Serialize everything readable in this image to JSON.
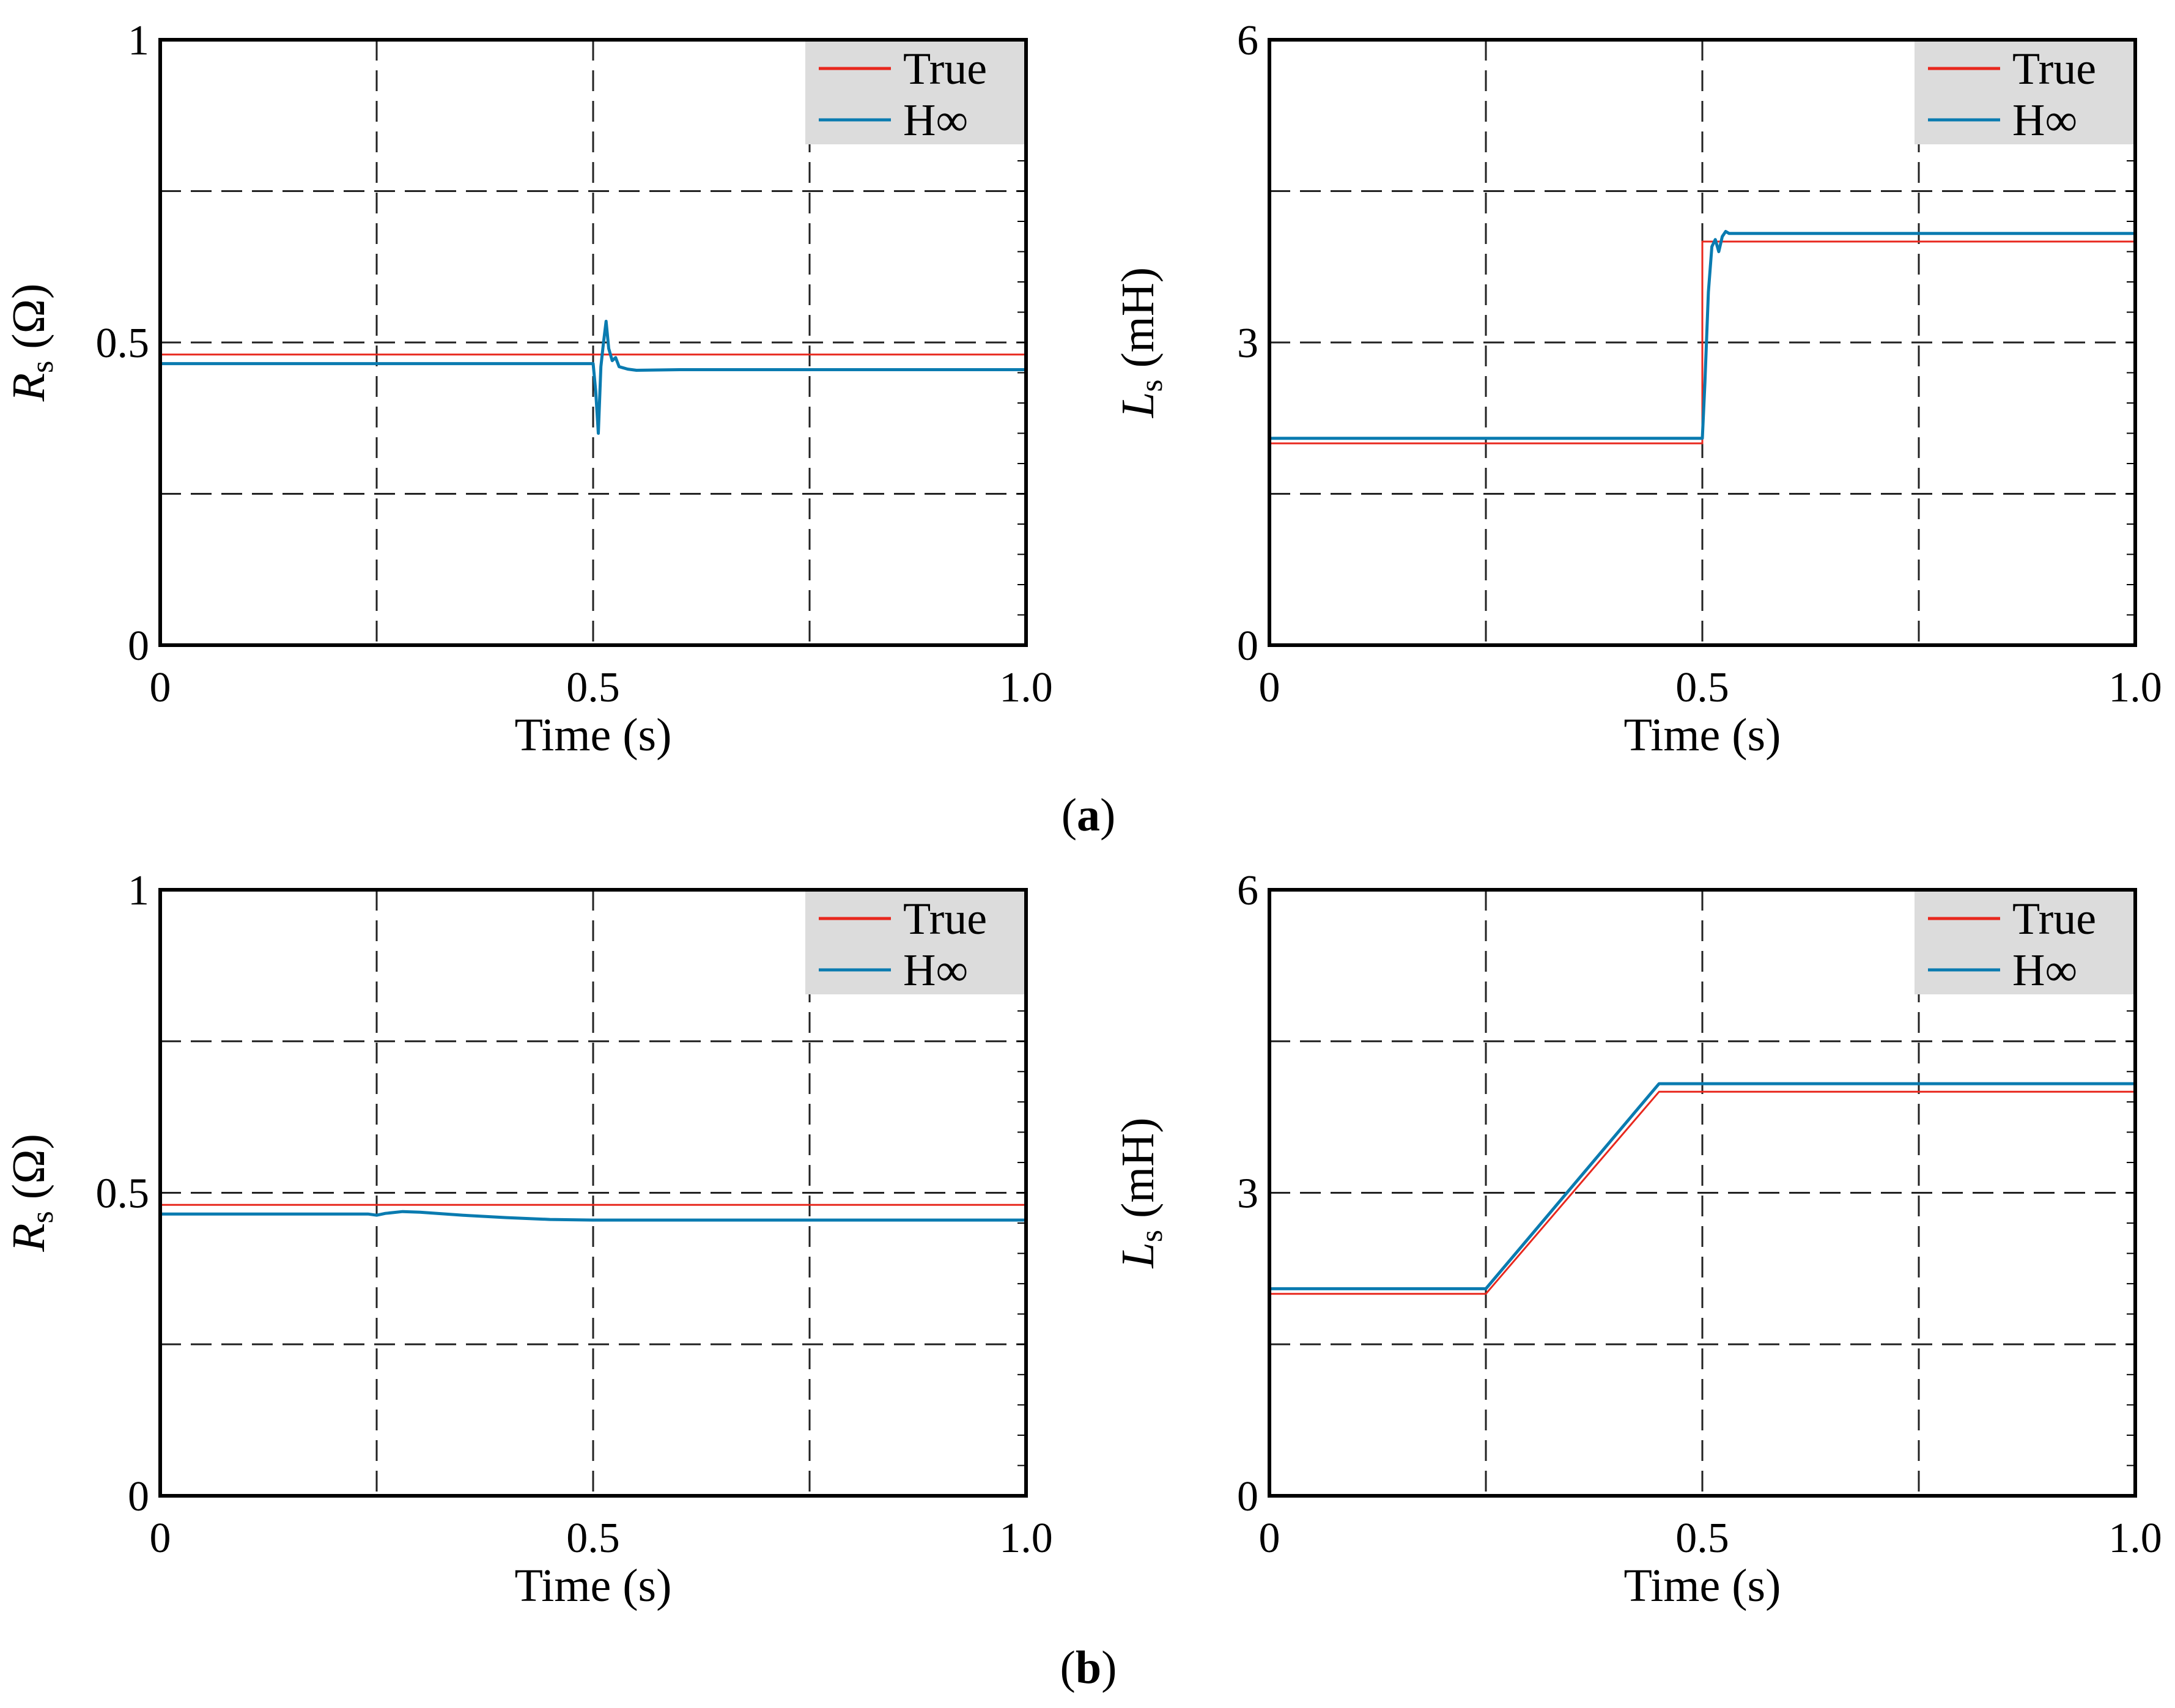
{
  "figure": {
    "captions": [
      {
        "open": "(",
        "label": "a",
        "close": ")"
      },
      {
        "open": "(",
        "label": "b",
        "close": ")"
      }
    ]
  },
  "colors": {
    "true_line": "#e8281e",
    "estimate_line": "#0a7bb0",
    "grid": "#222222",
    "legend_bg": "#dcdcdc"
  },
  "chart_data": [
    {
      "id": "a-rs",
      "type": "line",
      "panel": "a",
      "xlabel": "Time (s)",
      "ylabel": {
        "symbol": "R",
        "subscript": "s",
        "unit": " (Ω)"
      },
      "xlim": [
        0,
        1.0
      ],
      "ylim": [
        0,
        1
      ],
      "xticks": [
        {
          "v": 0,
          "label": "0"
        },
        {
          "v": 0.5,
          "label": "0.5"
        },
        {
          "v": 1.0,
          "label": "1.0"
        }
      ],
      "yticks": [
        {
          "v": 0,
          "label": "0"
        },
        {
          "v": 0.5,
          "label": "0.5"
        },
        {
          "v": 1,
          "label": "1"
        }
      ],
      "xgrid": [
        0.25,
        0.5,
        0.75
      ],
      "ygrid": [
        0.25,
        0.5,
        0.75
      ],
      "legend": [
        "True",
        "H∞"
      ],
      "series": [
        {
          "name": "True",
          "x": [
            0,
            0.5,
            0.5,
            1.0
          ],
          "y": [
            0.48,
            0.48,
            0.48,
            0.48
          ]
        },
        {
          "name": "H∞",
          "x": [
            0,
            0.5,
            0.503,
            0.506,
            0.509,
            0.512,
            0.515,
            0.518,
            0.522,
            0.526,
            0.53,
            0.54,
            0.55,
            0.6,
            0.7,
            0.8,
            0.9,
            1.0
          ],
          "y": [
            0.465,
            0.465,
            0.42,
            0.35,
            0.46,
            0.5,
            0.535,
            0.49,
            0.47,
            0.475,
            0.46,
            0.456,
            0.454,
            0.455,
            0.455,
            0.455,
            0.455,
            0.455
          ]
        }
      ]
    },
    {
      "id": "a-ls",
      "type": "line",
      "panel": "a",
      "xlabel": "Time (s)",
      "ylabel": {
        "symbol": "L",
        "subscript": "s",
        "unit": " (mH)"
      },
      "xlim": [
        0,
        1.0
      ],
      "ylim": [
        0,
        6
      ],
      "xticks": [
        {
          "v": 0,
          "label": "0"
        },
        {
          "v": 0.5,
          "label": "0.5"
        },
        {
          "v": 1.0,
          "label": "1.0"
        }
      ],
      "yticks": [
        {
          "v": 0,
          "label": "0"
        },
        {
          "v": 3,
          "label": "3"
        },
        {
          "v": 6,
          "label": "6"
        }
      ],
      "xgrid": [
        0.25,
        0.5,
        0.75
      ],
      "ygrid": [
        1.5,
        3,
        4.5
      ],
      "legend": [
        "True",
        "H∞"
      ],
      "series": [
        {
          "name": "True",
          "x": [
            0,
            0.5,
            0.5,
            1.0
          ],
          "y": [
            2.0,
            2.0,
            4.0,
            4.0
          ]
        },
        {
          "name": "H∞",
          "x": [
            0,
            0.5,
            0.503,
            0.507,
            0.511,
            0.515,
            0.519,
            0.523,
            0.527,
            0.531,
            0.54,
            0.6,
            0.7,
            0.8,
            0.9,
            1.0
          ],
          "y": [
            2.05,
            2.05,
            2.6,
            3.5,
            3.95,
            4.02,
            3.9,
            4.05,
            4.1,
            4.08,
            4.08,
            4.08,
            4.08,
            4.08,
            4.08,
            4.08
          ]
        }
      ]
    },
    {
      "id": "b-rs",
      "type": "line",
      "panel": "b",
      "xlabel": "Time (s)",
      "ylabel": {
        "symbol": "R",
        "subscript": "s",
        "unit": " (Ω)"
      },
      "xlim": [
        0,
        1.0
      ],
      "ylim": [
        0,
        1
      ],
      "xticks": [
        {
          "v": 0,
          "label": "0"
        },
        {
          "v": 0.5,
          "label": "0.5"
        },
        {
          "v": 1.0,
          "label": "1.0"
        }
      ],
      "yticks": [
        {
          "v": 0,
          "label": "0"
        },
        {
          "v": 0.5,
          "label": "0.5"
        },
        {
          "v": 1,
          "label": "1"
        }
      ],
      "xgrid": [
        0.25,
        0.5,
        0.75
      ],
      "ygrid": [
        0.25,
        0.5,
        0.75
      ],
      "legend": [
        "True",
        "H∞"
      ],
      "series": [
        {
          "name": "True",
          "x": [
            0,
            1.0
          ],
          "y": [
            0.48,
            0.48
          ]
        },
        {
          "name": "H∞",
          "x": [
            0,
            0.24,
            0.25,
            0.26,
            0.28,
            0.3,
            0.35,
            0.4,
            0.45,
            0.5,
            0.6,
            0.7,
            0.8,
            0.9,
            1.0
          ],
          "y": [
            0.465,
            0.465,
            0.463,
            0.466,
            0.469,
            0.468,
            0.463,
            0.459,
            0.456,
            0.455,
            0.455,
            0.455,
            0.455,
            0.455,
            0.455
          ]
        }
      ]
    },
    {
      "id": "b-ls",
      "type": "line",
      "panel": "b",
      "xlabel": "Time (s)",
      "ylabel": {
        "symbol": "L",
        "subscript": "s",
        "unit": " (mH)"
      },
      "xlim": [
        0,
        1.0
      ],
      "ylim": [
        0,
        6
      ],
      "xticks": [
        {
          "v": 0,
          "label": "0"
        },
        {
          "v": 0.5,
          "label": "0.5"
        },
        {
          "v": 1.0,
          "label": "1.0"
        }
      ],
      "yticks": [
        {
          "v": 0,
          "label": "0"
        },
        {
          "v": 3,
          "label": "3"
        },
        {
          "v": 6,
          "label": "6"
        }
      ],
      "xgrid": [
        0.25,
        0.5,
        0.75
      ],
      "ygrid": [
        1.5,
        3,
        4.5
      ],
      "legend": [
        "True",
        "H∞"
      ],
      "series": [
        {
          "name": "True",
          "x": [
            0,
            0.25,
            0.45,
            1.0
          ],
          "y": [
            2.0,
            2.0,
            4.0,
            4.0
          ]
        },
        {
          "name": "H∞",
          "x": [
            0,
            0.25,
            0.45,
            0.46,
            1.0
          ],
          "y": [
            2.05,
            2.05,
            4.08,
            4.08,
            4.08
          ]
        }
      ]
    }
  ]
}
